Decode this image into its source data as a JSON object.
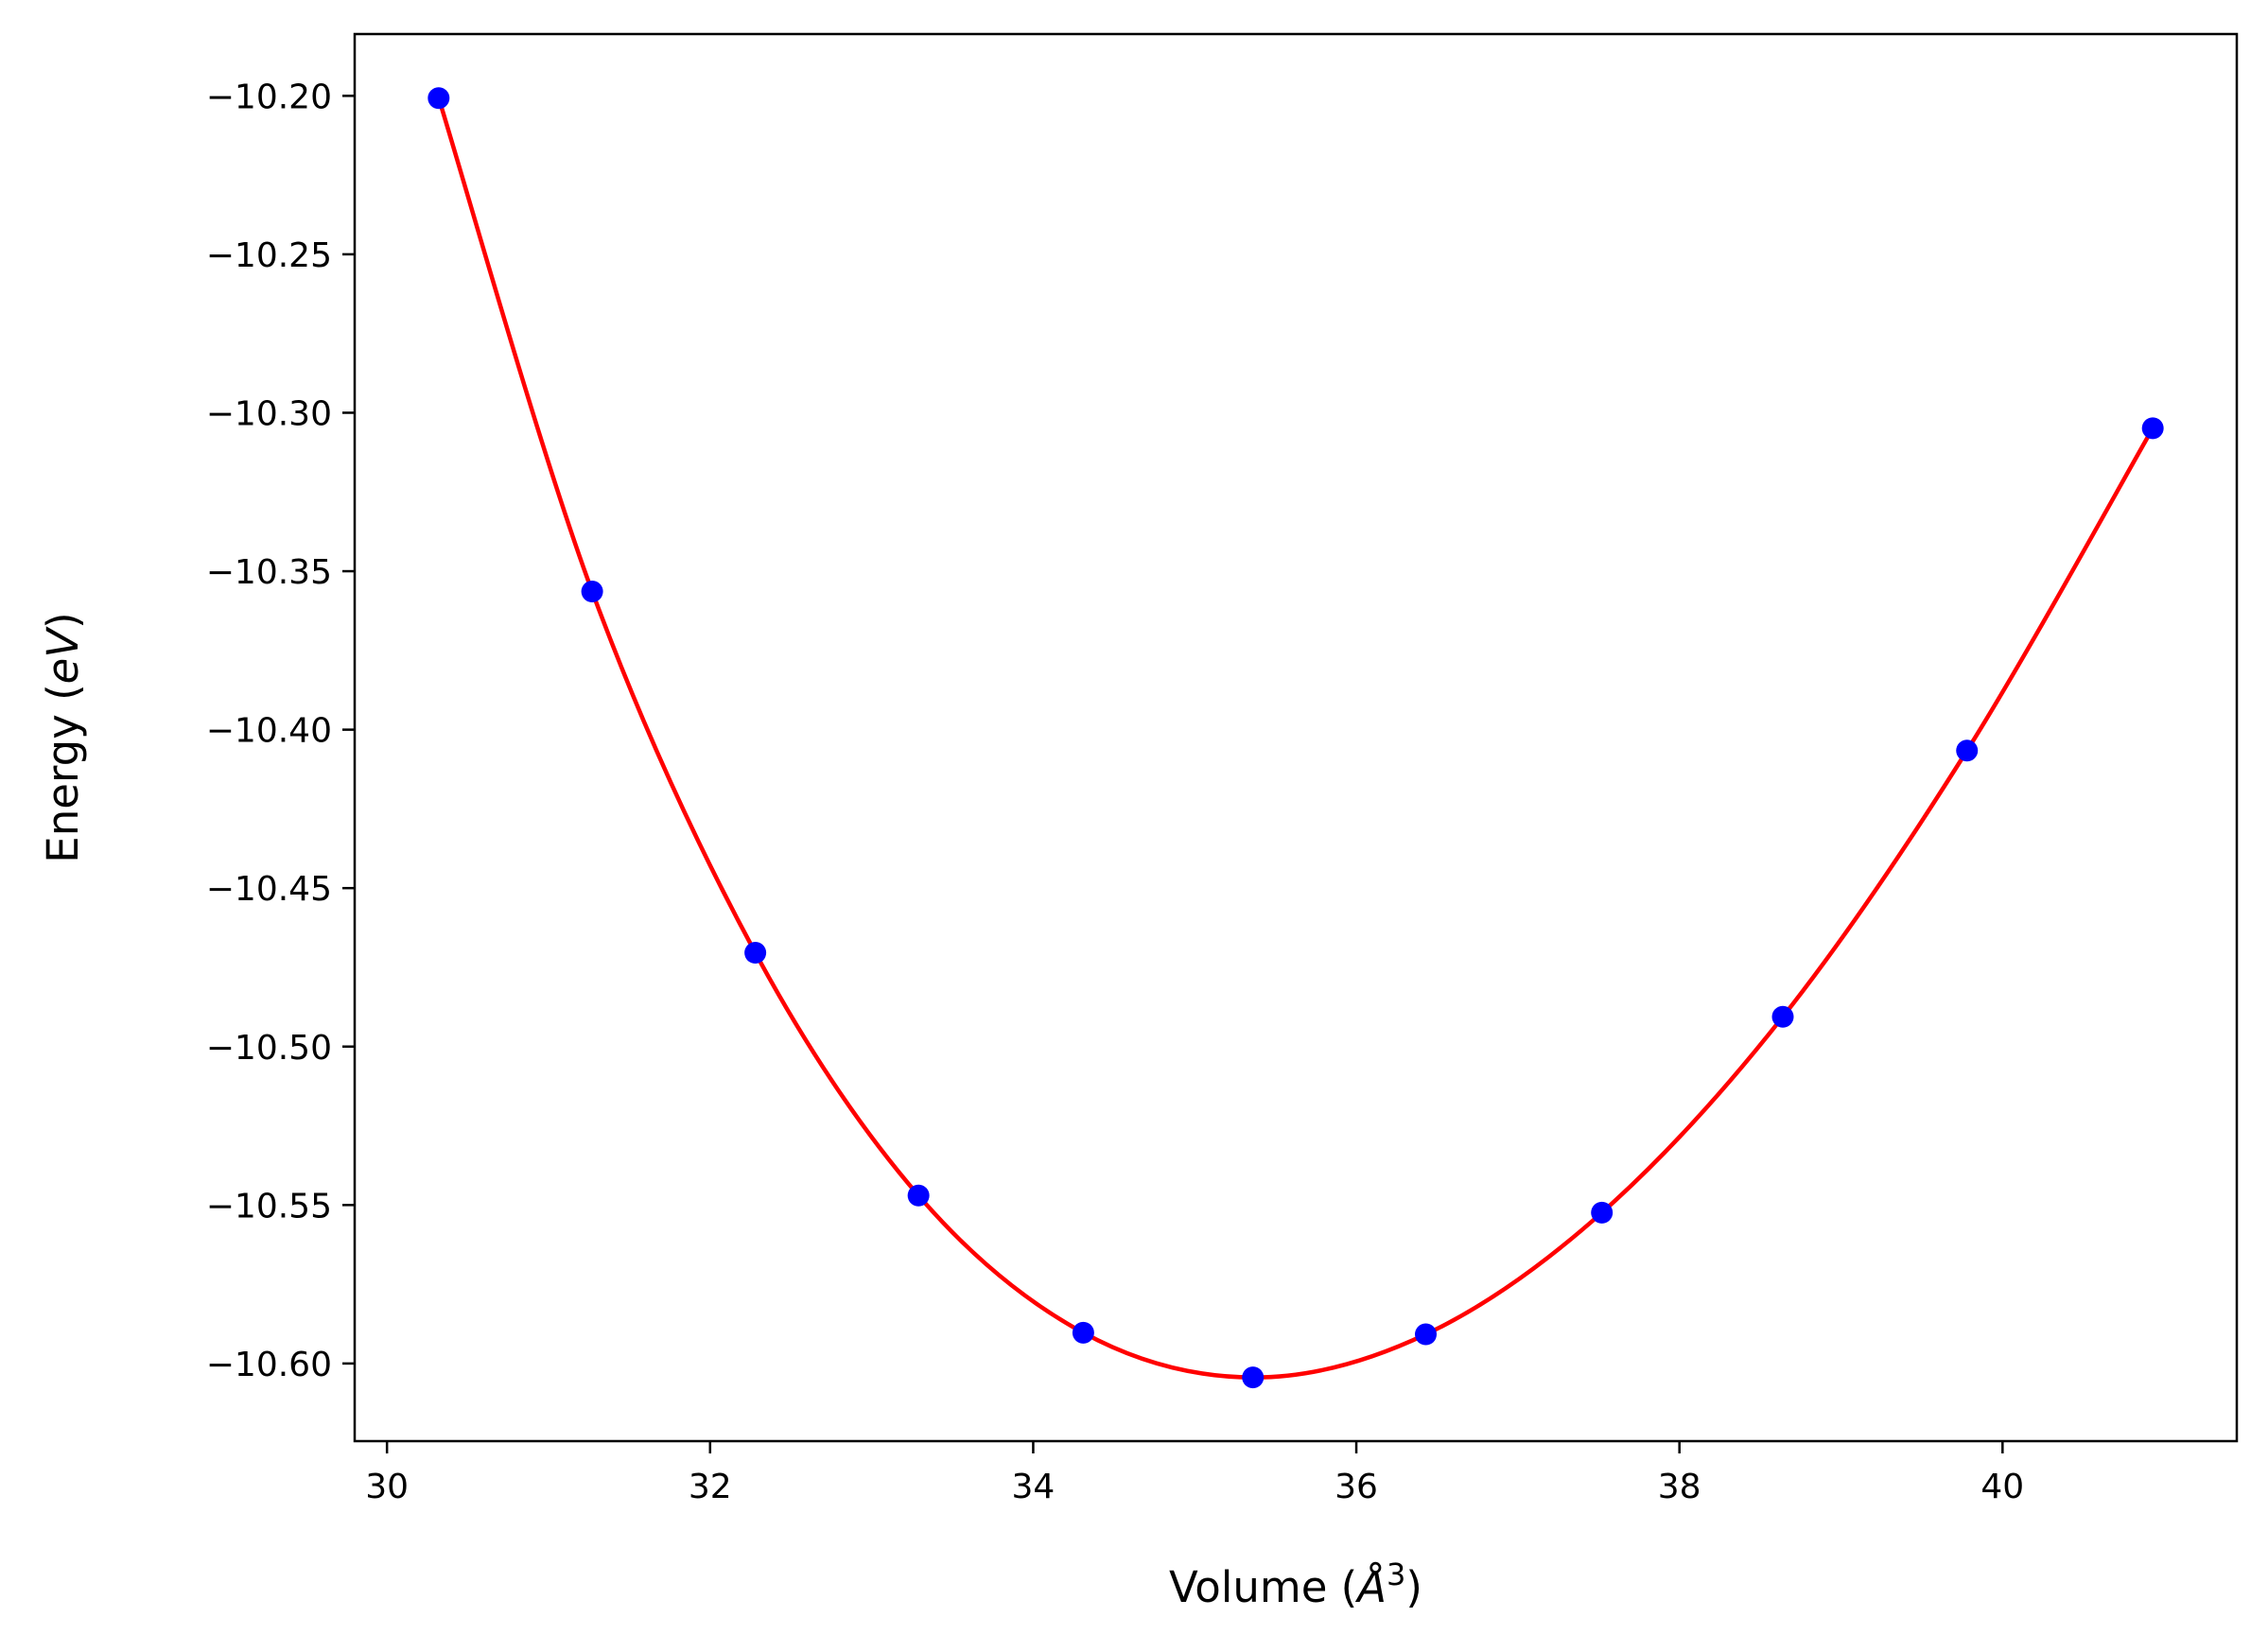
{
  "chart_data": {
    "type": "scatter",
    "xlabel": "Volume (Å³)",
    "xlabel_parts": {
      "prefix": "Volume (",
      "unit": "Å",
      "exponent": "3",
      "suffix": ")"
    },
    "ylabel": "Energy (eV)",
    "ylabel_parts": {
      "prefix": "Energy (",
      "unit": "eV",
      "suffix": ")"
    },
    "xlim": [
      29.8,
      41.45
    ],
    "ylim": [
      -10.6245,
      -10.1805
    ],
    "xticks": [
      30,
      32,
      34,
      36,
      38,
      40
    ],
    "xtick_labels": [
      "30",
      "32",
      "34",
      "36",
      "38",
      "40"
    ],
    "yticks": [
      -10.2,
      -10.25,
      -10.3,
      -10.35,
      -10.4,
      -10.45,
      -10.5,
      -10.55,
      -10.6
    ],
    "ytick_labels": [
      "−10.20",
      "−10.25",
      "−10.30",
      "−10.35",
      "−10.40",
      "−10.45",
      "−10.50",
      "−10.55",
      "−10.60"
    ],
    "grid": false,
    "legend": "none",
    "series": [
      {
        "kind": "points",
        "color": "#0000ff",
        "x": [
          30.32,
          31.27,
          32.28,
          33.29,
          34.31,
          35.36,
          36.43,
          37.52,
          38.64,
          39.78,
          40.93
        ],
        "y": [
          -10.2007,
          -10.3564,
          -10.4704,
          -10.547,
          -10.5903,
          -10.6044,
          -10.5908,
          -10.5524,
          -10.4906,
          -10.4066,
          -10.3049
        ]
      },
      {
        "kind": "fit-curve",
        "color": "#ff0000",
        "x_range": [
          30.32,
          40.93
        ],
        "min_volume": 35.3,
        "min_energy": -10.6045
      }
    ]
  }
}
